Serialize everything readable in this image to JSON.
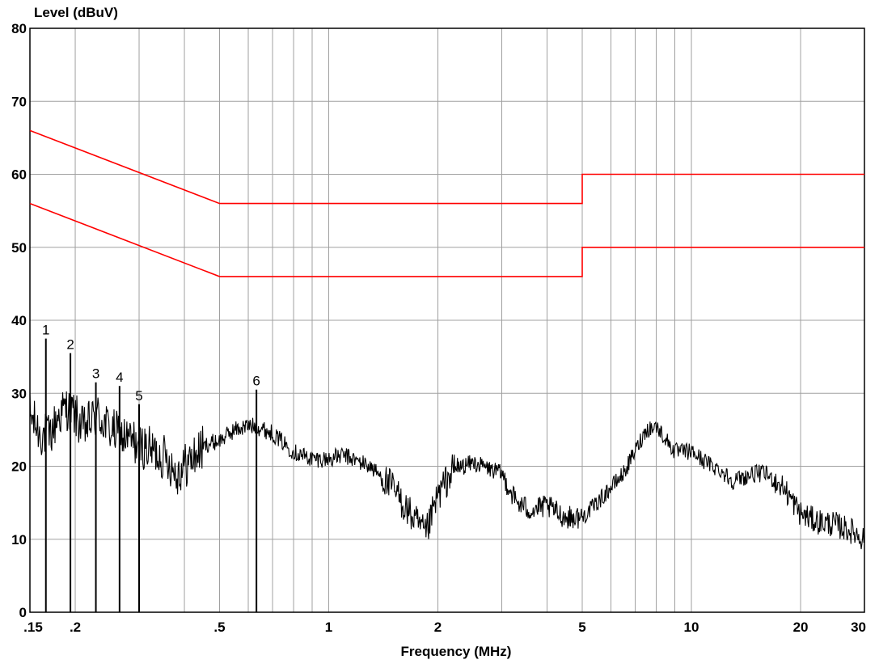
{
  "chart_data": {
    "type": "line",
    "ylabel": "Level (dBuV)",
    "xlabel": "Frequency (MHz)",
    "xscale": "log",
    "xlim": [
      0.15,
      30
    ],
    "ylim": [
      0,
      80
    ],
    "grid": true,
    "x_tick_labels": [
      ".15",
      ".2",
      ".5",
      "1",
      "2",
      "5",
      "10",
      "20",
      "30"
    ],
    "x_tick_values": [
      0.15,
      0.2,
      0.5,
      1,
      2,
      5,
      10,
      20,
      30
    ],
    "x_minor_gridlines": [
      0.3,
      0.4,
      0.6,
      0.7,
      0.8,
      0.9,
      3,
      4,
      6,
      7,
      8,
      9
    ],
    "y_tick_labels": [
      "0",
      "10",
      "20",
      "30",
      "40",
      "50",
      "60",
      "70",
      "80"
    ],
    "y_tick_values": [
      0,
      10,
      20,
      30,
      40,
      50,
      60,
      70,
      80
    ],
    "colors": {
      "limit": "#ff0000",
      "trace": "#000000",
      "grid": "#a0a0a0"
    },
    "limit_lines": [
      {
        "points": [
          [
            0.15,
            66
          ],
          [
            0.5,
            56
          ],
          [
            5,
            56
          ],
          [
            5,
            60
          ],
          [
            30,
            60
          ]
        ]
      },
      {
        "points": [
          [
            0.15,
            56
          ],
          [
            0.5,
            46
          ],
          [
            5,
            46
          ],
          [
            5,
            50
          ],
          [
            30,
            50
          ]
        ]
      }
    ],
    "trace_envelope": [
      [
        0.15,
        27
      ],
      [
        0.16,
        24.5
      ],
      [
        0.17,
        24
      ],
      [
        0.18,
        27
      ],
      [
        0.19,
        28
      ],
      [
        0.2,
        27
      ],
      [
        0.21,
        25
      ],
      [
        0.23,
        27
      ],
      [
        0.25,
        25
      ],
      [
        0.27,
        24
      ],
      [
        0.3,
        23
      ],
      [
        0.33,
        22
      ],
      [
        0.36,
        21
      ],
      [
        0.38,
        19
      ],
      [
        0.42,
        21
      ],
      [
        0.46,
        23
      ],
      [
        0.5,
        23.5
      ],
      [
        0.55,
        25
      ],
      [
        0.6,
        25.5
      ],
      [
        0.63,
        25.5
      ],
      [
        0.7,
        24.5
      ],
      [
        0.8,
        22
      ],
      [
        0.9,
        21
      ],
      [
        1.0,
        21
      ],
      [
        1.1,
        21.5
      ],
      [
        1.3,
        20
      ],
      [
        1.5,
        17
      ],
      [
        1.7,
        13
      ],
      [
        1.85,
        10.5
      ],
      [
        2.0,
        16
      ],
      [
        2.2,
        19.5
      ],
      [
        2.5,
        20.5
      ],
      [
        3.0,
        19
      ],
      [
        3.3,
        15
      ],
      [
        3.6,
        14
      ],
      [
        4.0,
        14.5
      ],
      [
        4.5,
        13
      ],
      [
        5.0,
        13
      ],
      [
        5.5,
        15
      ],
      [
        6.5,
        19
      ],
      [
        7.5,
        25
      ],
      [
        8.0,
        25.5
      ],
      [
        9.0,
        22
      ],
      [
        10,
        22
      ],
      [
        11,
        20.5
      ],
      [
        12,
        19.5
      ],
      [
        13,
        18
      ],
      [
        15,
        19
      ],
      [
        16,
        19
      ],
      [
        18,
        17
      ],
      [
        20,
        13.5
      ],
      [
        22,
        12.5
      ],
      [
        25,
        12
      ],
      [
        28,
        11
      ],
      [
        30,
        10
      ]
    ],
    "peaks": [
      {
        "label": "1",
        "freq": 0.166,
        "level": 37.5
      },
      {
        "label": "2",
        "freq": 0.194,
        "level": 35.5
      },
      {
        "label": "3",
        "freq": 0.228,
        "level": 31.5
      },
      {
        "label": "4",
        "freq": 0.265,
        "level": 31
      },
      {
        "label": "5",
        "freq": 0.3,
        "level": 28.5
      },
      {
        "label": "6",
        "freq": 0.632,
        "level": 30.5
      }
    ]
  }
}
